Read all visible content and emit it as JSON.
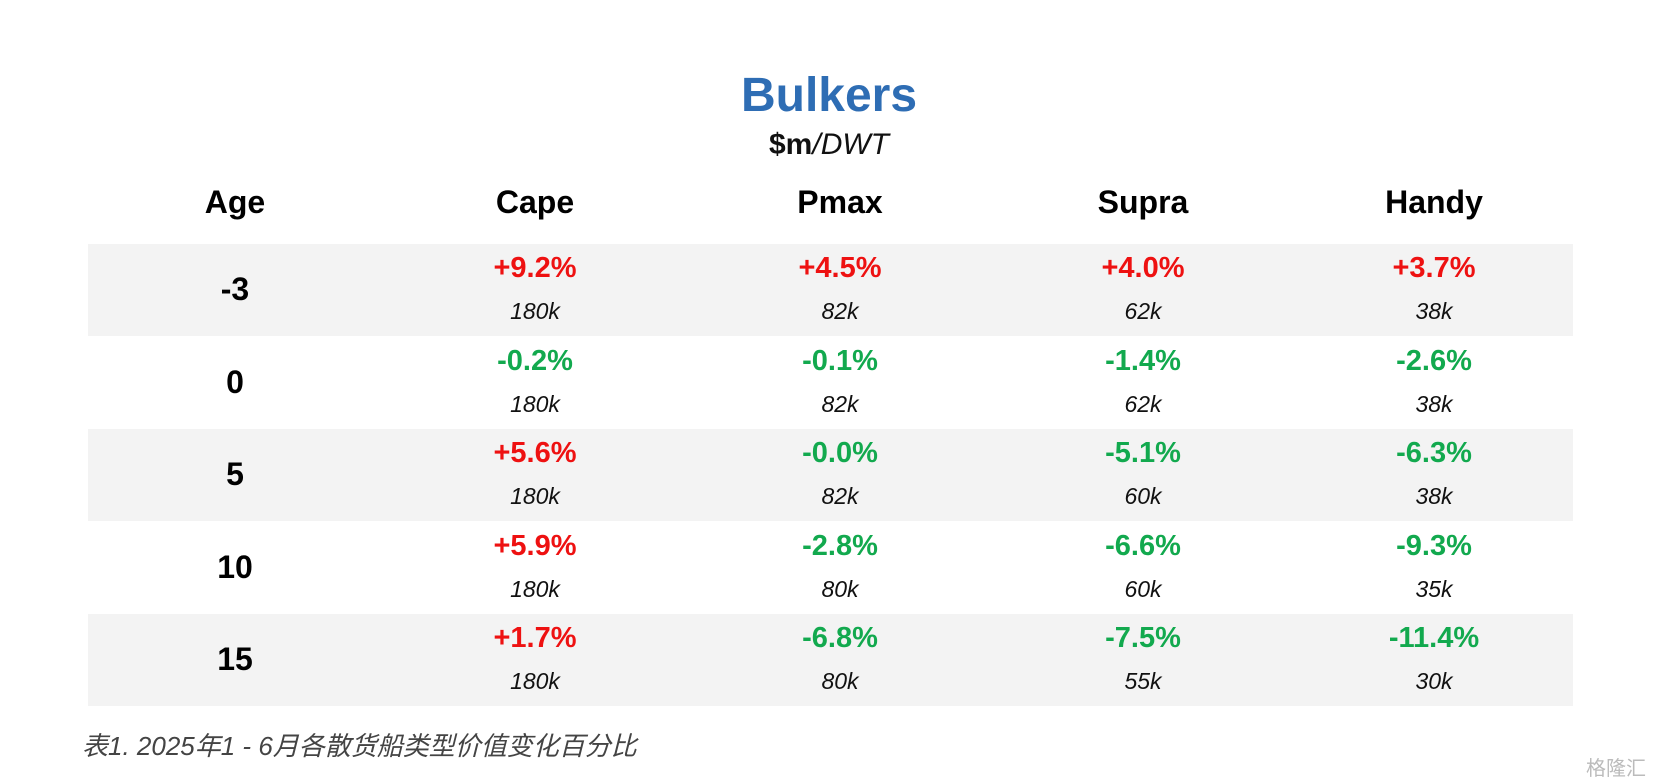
{
  "header": {
    "title": "Bulkers",
    "subtitle": [
      "$m",
      "/DWT"
    ]
  },
  "table": {
    "columns": [
      "Age",
      "Cape",
      "Pmax",
      "Supra",
      "Handy"
    ],
    "rows": [
      {
        "age": "-3",
        "cells": [
          [
            "+9.2%",
            "180k"
          ],
          [
            "+4.5%",
            "82k"
          ],
          [
            "+4.0%",
            "62k"
          ],
          [
            "+3.7%",
            "38k"
          ]
        ]
      },
      {
        "age": "0",
        "cells": [
          [
            "-0.2%",
            "180k"
          ],
          [
            "-0.1%",
            "82k"
          ],
          [
            "-1.4%",
            "62k"
          ],
          [
            "-2.6%",
            "38k"
          ]
        ]
      },
      {
        "age": "5",
        "cells": [
          [
            "+5.6%",
            "180k"
          ],
          [
            "-0.0%",
            "82k"
          ],
          [
            "-5.1%",
            "60k"
          ],
          [
            "-6.3%",
            "38k"
          ]
        ]
      },
      {
        "age": "10",
        "cells": [
          [
            "+5.9%",
            "180k"
          ],
          [
            "-2.8%",
            "80k"
          ],
          [
            "-6.6%",
            "60k"
          ],
          [
            "-9.3%",
            "35k"
          ]
        ]
      },
      {
        "age": "15",
        "cells": [
          [
            "+1.7%",
            "180k"
          ],
          [
            "-6.8%",
            "80k"
          ],
          [
            "-7.5%",
            "55k"
          ],
          [
            "-11.4%",
            "30k"
          ]
        ]
      }
    ],
    "colors": {
      "positive": "#ee1111",
      "negative": "#12a94e"
    }
  },
  "caption": "表1. 2025年1 - 6月各散货船类型价值变化百分比",
  "watermark": "格隆汇"
}
